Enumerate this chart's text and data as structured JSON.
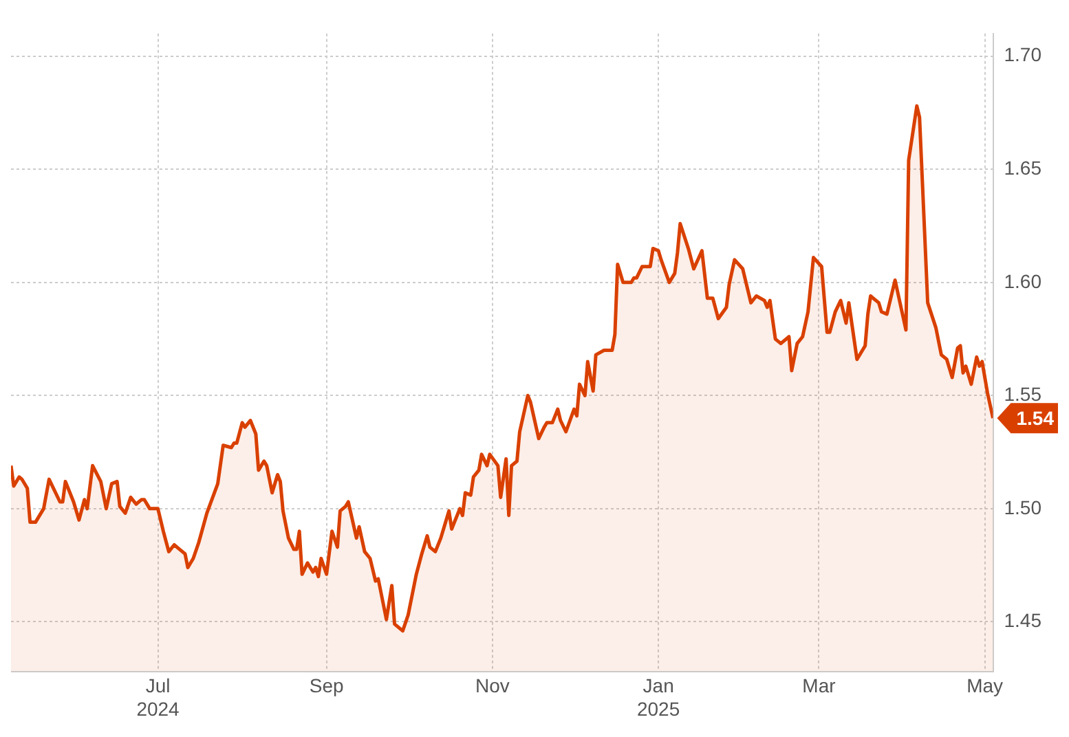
{
  "chart_data": {
    "type": "area",
    "x": [
      "2024-05-08",
      "2024-05-09",
      "2024-05-11",
      "2024-05-12",
      "2024-05-14",
      "2024-05-15",
      "2024-05-17",
      "2024-05-20",
      "2024-05-22",
      "2024-05-26",
      "2024-05-27",
      "2024-05-28",
      "2024-05-31",
      "2024-06-02",
      "2024-06-04",
      "2024-06-05",
      "2024-06-07",
      "2024-06-10",
      "2024-06-12",
      "2024-06-14",
      "2024-06-16",
      "2024-06-17",
      "2024-06-19",
      "2024-06-21",
      "2024-06-23",
      "2024-06-25",
      "2024-06-26",
      "2024-06-28",
      "2024-07-01",
      "2024-07-03",
      "2024-07-05",
      "2024-07-07",
      "2024-07-09",
      "2024-07-11",
      "2024-07-12",
      "2024-07-14",
      "2024-07-16",
      "2024-07-19",
      "2024-07-23",
      "2024-07-25",
      "2024-07-28",
      "2024-07-29",
      "2024-07-30",
      "2024-08-01",
      "2024-08-02",
      "2024-08-04",
      "2024-08-06",
      "2024-08-07",
      "2024-08-09",
      "2024-08-10",
      "2024-08-12",
      "2024-08-14",
      "2024-08-15",
      "2024-08-16",
      "2024-08-18",
      "2024-08-20",
      "2024-08-21",
      "2024-08-22",
      "2024-08-23",
      "2024-08-25",
      "2024-08-27",
      "2024-08-28",
      "2024-08-29",
      "2024-08-30",
      "2024-09-01",
      "2024-09-03",
      "2024-09-05",
      "2024-09-06",
      "2024-09-08",
      "2024-09-09",
      "2024-09-12",
      "2024-09-13",
      "2024-09-15",
      "2024-09-17",
      "2024-09-19",
      "2024-09-20",
      "2024-09-21",
      "2024-09-23",
      "2024-09-25",
      "2024-09-26",
      "2024-09-29",
      "2024-10-01",
      "2024-10-04",
      "2024-10-06",
      "2024-10-08",
      "2024-10-09",
      "2024-10-11",
      "2024-10-13",
      "2024-10-16",
      "2024-10-17",
      "2024-10-20",
      "2024-10-21",
      "2024-10-22",
      "2024-10-24",
      "2024-10-25",
      "2024-10-27",
      "2024-10-28",
      "2024-10-30",
      "2024-10-31",
      "2024-11-03",
      "2024-11-04",
      "2024-11-06",
      "2024-11-07",
      "2024-11-08",
      "2024-11-10",
      "2024-11-11",
      "2024-11-14",
      "2024-11-15",
      "2024-11-18",
      "2024-11-20",
      "2024-11-21",
      "2024-11-23",
      "2024-11-25",
      "2024-11-26",
      "2024-11-28",
      "2024-12-01",
      "2024-12-02",
      "2024-12-03",
      "2024-12-05",
      "2024-12-06",
      "2024-12-08",
      "2024-12-09",
      "2024-12-12",
      "2024-12-15",
      "2024-12-16",
      "2024-12-17",
      "2024-12-19",
      "2024-12-22",
      "2024-12-23",
      "2024-12-24",
      "2024-12-26",
      "2024-12-29",
      "2024-12-30",
      "2025-01-01",
      "2025-01-02",
      "2025-01-05",
      "2025-01-07",
      "2025-01-08",
      "2025-01-09",
      "2025-01-12",
      "2025-01-14",
      "2025-01-17",
      "2025-01-19",
      "2025-01-21",
      "2025-01-23",
      "2025-01-26",
      "2025-01-27",
      "2025-01-29",
      "2025-02-01",
      "2025-02-04",
      "2025-02-06",
      "2025-02-09",
      "2025-02-10",
      "2025-02-11",
      "2025-02-13",
      "2025-02-15",
      "2025-02-18",
      "2025-02-19",
      "2025-02-21",
      "2025-02-23",
      "2025-02-25",
      "2025-02-27",
      "2025-03-02",
      "2025-03-04",
      "2025-03-05",
      "2025-03-07",
      "2025-03-09",
      "2025-03-11",
      "2025-03-12",
      "2025-03-15",
      "2025-03-18",
      "2025-03-19",
      "2025-03-20",
      "2025-03-23",
      "2025-03-24",
      "2025-03-26",
      "2025-03-29",
      "2025-03-31",
      "2025-04-02",
      "2025-04-03",
      "2025-04-06",
      "2025-04-07",
      "2025-04-10",
      "2025-04-13",
      "2025-04-15",
      "2025-04-17",
      "2025-04-19",
      "2025-04-21",
      "2025-04-22",
      "2025-04-23",
      "2025-04-24",
      "2025-04-26",
      "2025-04-28",
      "2025-04-29",
      "2025-04-30",
      "2025-05-02",
      "2025-05-04"
    ],
    "series": [
      {
        "color": "#d94000",
        "values": [
          1.519,
          1.51,
          1.514,
          1.513,
          1.509,
          1.494,
          1.494,
          1.5,
          1.513,
          1.503,
          1.503,
          1.512,
          1.503,
          1.495,
          1.504,
          1.5,
          1.519,
          1.512,
          1.5,
          1.511,
          1.512,
          1.501,
          1.498,
          1.505,
          1.502,
          1.504,
          1.504,
          1.5,
          1.5,
          1.49,
          1.481,
          1.484,
          1.482,
          1.48,
          1.474,
          1.478,
          1.485,
          1.498,
          1.511,
          1.528,
          1.527,
          1.529,
          1.529,
          1.538,
          1.536,
          1.539,
          1.533,
          1.517,
          1.521,
          1.519,
          1.507,
          1.515,
          1.512,
          1.499,
          1.487,
          1.482,
          1.482,
          1.49,
          1.471,
          1.476,
          1.472,
          1.474,
          1.47,
          1.478,
          1.471,
          1.49,
          1.483,
          1.499,
          1.501,
          1.503,
          1.487,
          1.492,
          1.481,
          1.478,
          1.468,
          1.469,
          1.463,
          1.451,
          1.466,
          1.449,
          1.446,
          1.453,
          1.471,
          1.48,
          1.488,
          1.483,
          1.481,
          1.487,
          1.499,
          1.491,
          1.5,
          1.497,
          1.507,
          1.506,
          1.514,
          1.517,
          1.524,
          1.519,
          1.524,
          1.519,
          1.505,
          1.522,
          1.497,
          1.519,
          1.521,
          1.534,
          1.55,
          1.547,
          1.531,
          1.536,
          1.538,
          1.538,
          1.544,
          1.539,
          1.534,
          1.544,
          1.541,
          1.555,
          1.55,
          1.565,
          1.552,
          1.568,
          1.57,
          1.57,
          1.577,
          1.608,
          1.6,
          1.6,
          1.602,
          1.602,
          1.607,
          1.607,
          1.615,
          1.614,
          1.61,
          1.6,
          1.604,
          1.613,
          1.626,
          1.615,
          1.606,
          1.614,
          1.593,
          1.593,
          1.584,
          1.589,
          1.599,
          1.61,
          1.606,
          1.591,
          1.594,
          1.592,
          1.589,
          1.592,
          1.575,
          1.573,
          1.576,
          1.561,
          1.573,
          1.576,
          1.587,
          1.611,
          1.607,
          1.578,
          1.578,
          1.587,
          1.592,
          1.582,
          1.591,
          1.566,
          1.572,
          1.586,
          1.594,
          1.591,
          1.587,
          1.586,
          1.601,
          1.59,
          1.579,
          1.654,
          1.678,
          1.673,
          1.591,
          1.58,
          1.568,
          1.566,
          1.558,
          1.571,
          1.572,
          1.56,
          1.563,
          1.555,
          1.567,
          1.563,
          1.565,
          1.551,
          1.54
        ]
      }
    ],
    "xlim": [
      "2024-05-08",
      "2025-05-04"
    ],
    "xticks": [
      {
        "value": "2024-07-01",
        "label": "Jul\n2024"
      },
      {
        "value": "2024-09-01",
        "label": "Sep"
      },
      {
        "value": "2024-11-01",
        "label": "Nov"
      },
      {
        "value": "2025-01-01",
        "label": "Jan\n2025"
      },
      {
        "value": "2025-03-01",
        "label": "Mar"
      },
      {
        "value": "2025-05-01",
        "label": "May"
      }
    ],
    "ylim": [
      1.428,
      1.71
    ],
    "yticks": [
      {
        "value": 1.45,
        "label": "1.45"
      },
      {
        "value": 1.5,
        "label": "1.50"
      },
      {
        "value": 1.55,
        "label": "1.55"
      },
      {
        "value": 1.6,
        "label": "1.60"
      },
      {
        "value": 1.65,
        "label": "1.65"
      },
      {
        "value": 1.7,
        "label": "1.70"
      }
    ],
    "annotations": [
      {
        "text": "1.54",
        "x": "2025-05-04",
        "y": 1.54
      }
    ],
    "grid": true,
    "legend": false,
    "line_style": "solid",
    "marker": "none"
  }
}
